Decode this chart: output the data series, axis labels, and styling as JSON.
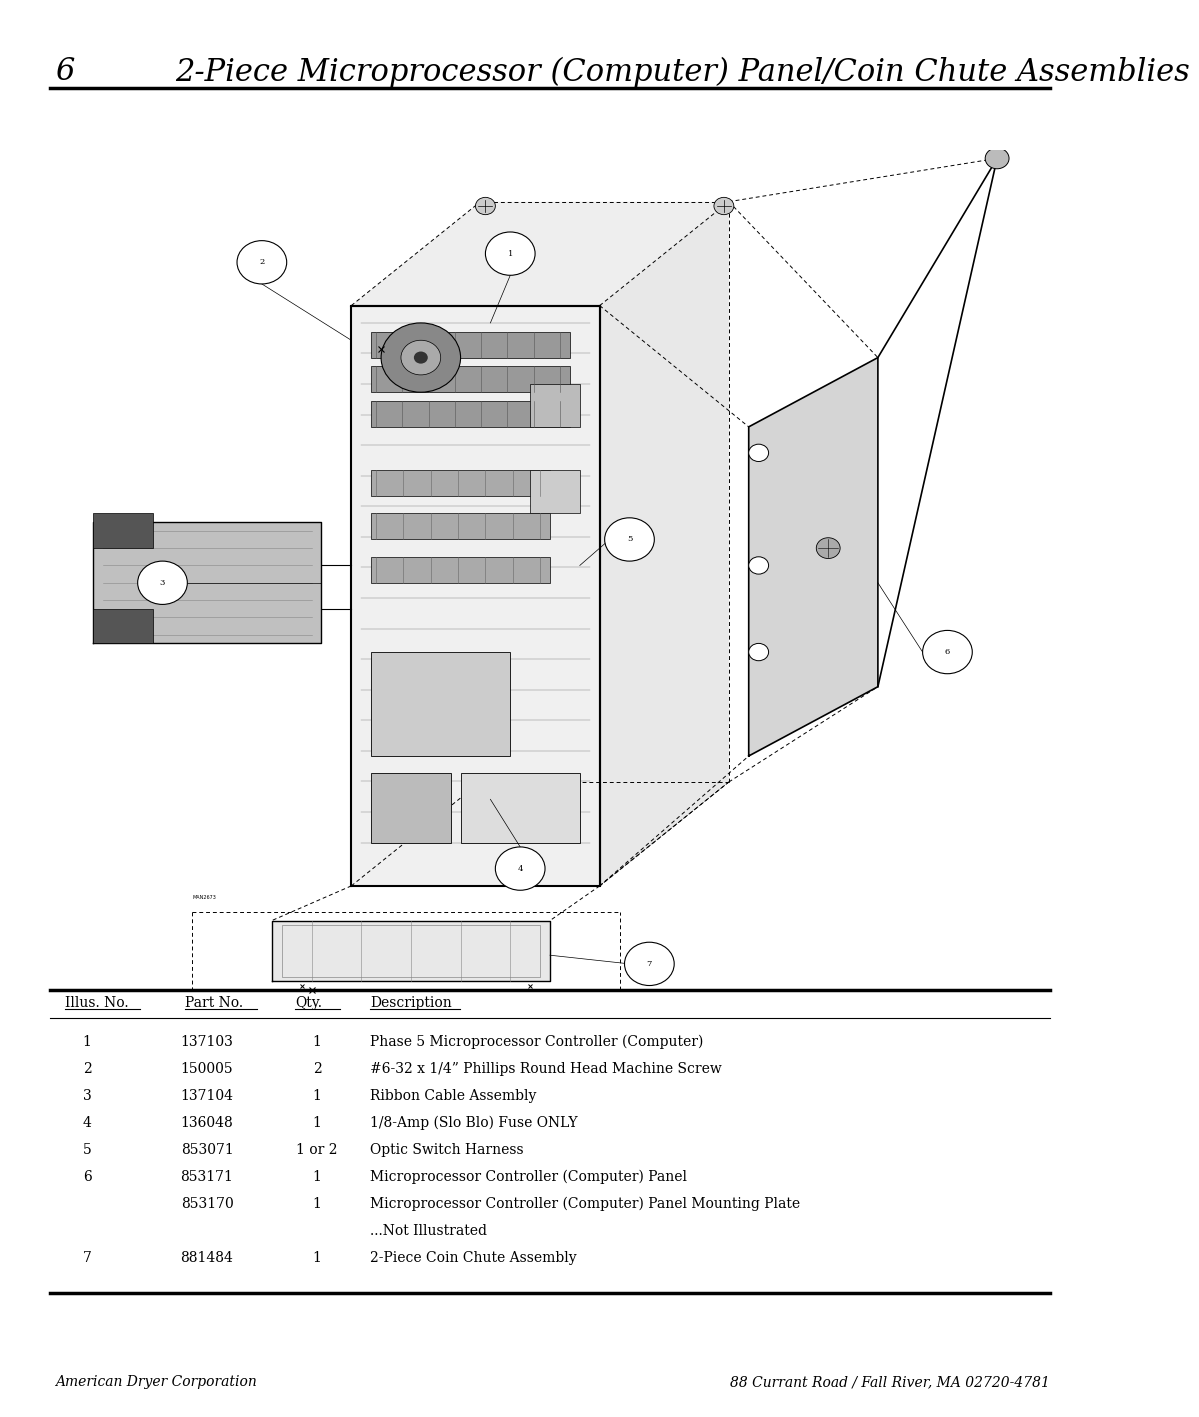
{
  "page_number": "6",
  "title": "2-Piece Microprocessor (Computer) Panel/Coin Chute Assemblies",
  "table_header": [
    "Illus. No.",
    "Part No.",
    "Qty.",
    "Description"
  ],
  "table_rows": [
    [
      "1",
      "137103",
      "1",
      "Phase 5 Microprocessor Controller (Computer)"
    ],
    [
      "2",
      "150005",
      "2",
      "#6-32 x 1/4” Phillips Round Head Machine Screw"
    ],
    [
      "3",
      "137104",
      "1",
      "Ribbon Cable Assembly"
    ],
    [
      "4",
      "136048",
      "1",
      "1/8-Amp (Slo Blo) Fuse ONLY"
    ],
    [
      "5",
      "853071",
      "1 or 2",
      "Optic Switch Harness"
    ],
    [
      "6",
      "853171",
      "1",
      "Microprocessor Controller (Computer) Panel"
    ],
    [
      "",
      "853170",
      "1",
      "Microprocessor Controller (Computer) Panel Mounting Plate"
    ],
    [
      "",
      "",
      "",
      "...Not Illustrated"
    ],
    [
      "7",
      "881484",
      "1",
      "2-Piece Coin Chute Assembly"
    ]
  ],
  "footer_left": "American Dryer Corporation",
  "footer_right": "88 Currant Road / Fall River, MA 02720-4781",
  "bg_color": "#ffffff",
  "text_color": "#000000",
  "title_fontsize": 22,
  "table_fontsize": 10,
  "footer_fontsize": 10
}
